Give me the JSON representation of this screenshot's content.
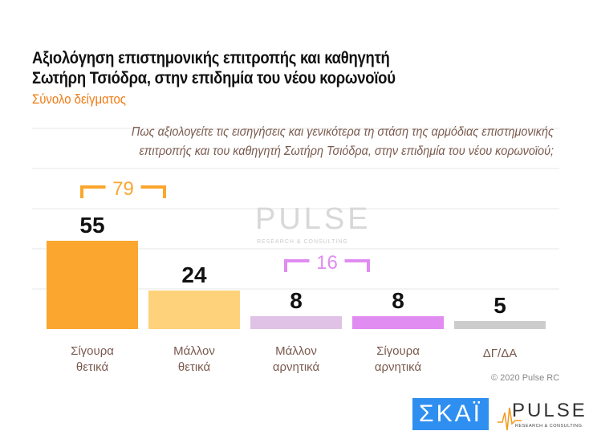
{
  "title_lines": [
    "Αξιολόγηση επιστημονικής επιτροπής και καθηγητή",
    "Σωτήρη Τσιόδρα, στην επιδημία του νέου κορωνοϊού"
  ],
  "subtitle": "Σύνολο δείγματος",
  "question": "Πως αξιολογείτε τις εισηγήσεις και γενικότερα τη στάση της αρμόδιας επιστημονικής επιτροπής και του καθηγητή Σωτήρη Τσιόδρα, στην επιδημία του νέου κορωνοϊού;",
  "copyright": "© 2020 Pulse RC",
  "logos": {
    "skai": "ΣΚΑΪ",
    "pulse": "PULSE",
    "pulse_tagline": "RESEARCH & CONSULTING"
  },
  "chart_data": {
    "type": "bar",
    "categories": [
      [
        "Σίγουρα",
        "θετικά"
      ],
      [
        "Μάλλον",
        "θετικά"
      ],
      [
        "Μάλλον",
        "αρνητικά"
      ],
      [
        "Σίγουρα",
        "αρνητικά"
      ],
      [
        "ΔΓ/ΔΑ"
      ]
    ],
    "values": [
      55,
      24,
      8,
      8,
      5
    ],
    "colors": [
      "#fba62e",
      "#fdd27a",
      "#dfc2e6",
      "#e08cf0",
      "#cccccc"
    ],
    "ylim": [
      0,
      125
    ],
    "grid": true,
    "groups": [
      {
        "label": "79",
        "from": 0,
        "to": 1,
        "color": "#fba62e"
      },
      {
        "label": "16",
        "from": 2,
        "to": 3,
        "color": "#e08cf0"
      }
    ]
  }
}
